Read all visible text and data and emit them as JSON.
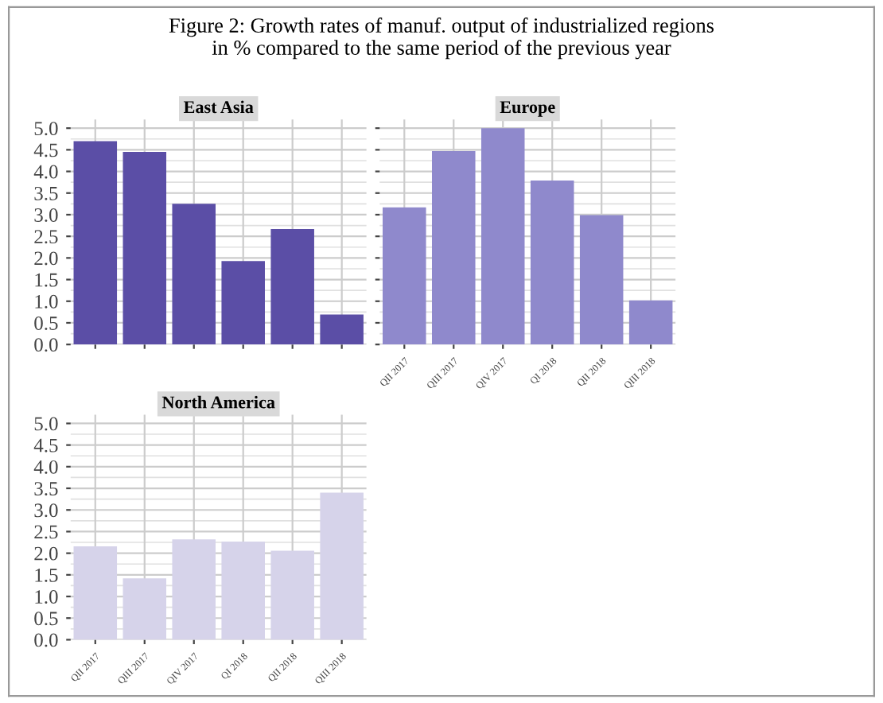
{
  "chart_data": [
    {
      "type": "bar",
      "title": "East Asia",
      "annotations": [
        "Figure 2: Growth rates of manuf. output of industrialized regions\nin % compared to the same period of the previous year"
      ],
      "categories": [
        null,
        null,
        null,
        null,
        null,
        null
      ],
      "values": [
        4.7,
        4.45,
        3.25,
        1.93,
        2.67,
        0.69
      ],
      "color": "#5b4ea6",
      "ylim": [
        0,
        5.2
      ],
      "yticks": [
        {
          "value": 0,
          "label": "0.0"
        },
        0.5,
        {
          "value": 1,
          "label": "1.0"
        },
        1.5,
        {
          "value": 2,
          "label": "2.0"
        },
        2.5,
        {
          "value": 3,
          "label": "3.0"
        },
        3.5,
        {
          "value": 4,
          "label": "4.0"
        },
        4.5,
        {
          "value": 5,
          "label": "5.0"
        }
      ],
      "grid": true,
      "tick_labels": "y"
    },
    {
      "type": "bar",
      "title": "Europe",
      "categories": [
        "QII 2017",
        "QIII 2017",
        "QIV 2017",
        "QI 2018",
        "QII 2018",
        "QIII 2018"
      ],
      "values": [
        3.17,
        4.47,
        5.0,
        3.79,
        2.99,
        1.02
      ],
      "color": "#8f89cc",
      "ylim": [
        0,
        5.2
      ],
      "yticks": [
        {
          "value": 0,
          "label": null
        },
        {
          "value": 0.5,
          "label": null
        },
        {
          "value": 1,
          "label": null
        },
        {
          "value": 1.5,
          "label": null
        },
        {
          "value": 2,
          "label": null
        },
        {
          "value": 2.5,
          "label": null
        },
        {
          "value": 3,
          "label": null
        },
        {
          "value": 3.5,
          "label": null
        },
        {
          "value": 4,
          "label": null
        },
        {
          "value": 4.5,
          "label": null
        },
        {
          "value": 5,
          "label": null
        }
      ],
      "grid": true,
      "tick_labels": "x"
    },
    {
      "type": "bar",
      "title": "North America",
      "categories": [
        "QII 2017",
        "QIII 2017",
        "QIV 2017",
        "QI 2018",
        "QII 2018",
        "QIII 2018"
      ],
      "values": [
        2.16,
        1.42,
        2.32,
        2.27,
        2.06,
        3.4
      ],
      "color": "#d6d3ea",
      "ylim": [
        0,
        5.2
      ],
      "yticks": [
        {
          "value": 0,
          "label": "0.0"
        },
        0.5,
        {
          "value": 1,
          "label": "1.0"
        },
        1.5,
        {
          "value": 2,
          "label": "2.0"
        },
        2.5,
        {
          "value": 3,
          "label": "3.0"
        },
        3.5,
        {
          "value": 4,
          "label": "4.0"
        },
        4.5,
        {
          "value": 5,
          "label": "5.0"
        }
      ],
      "grid": true
    }
  ]
}
